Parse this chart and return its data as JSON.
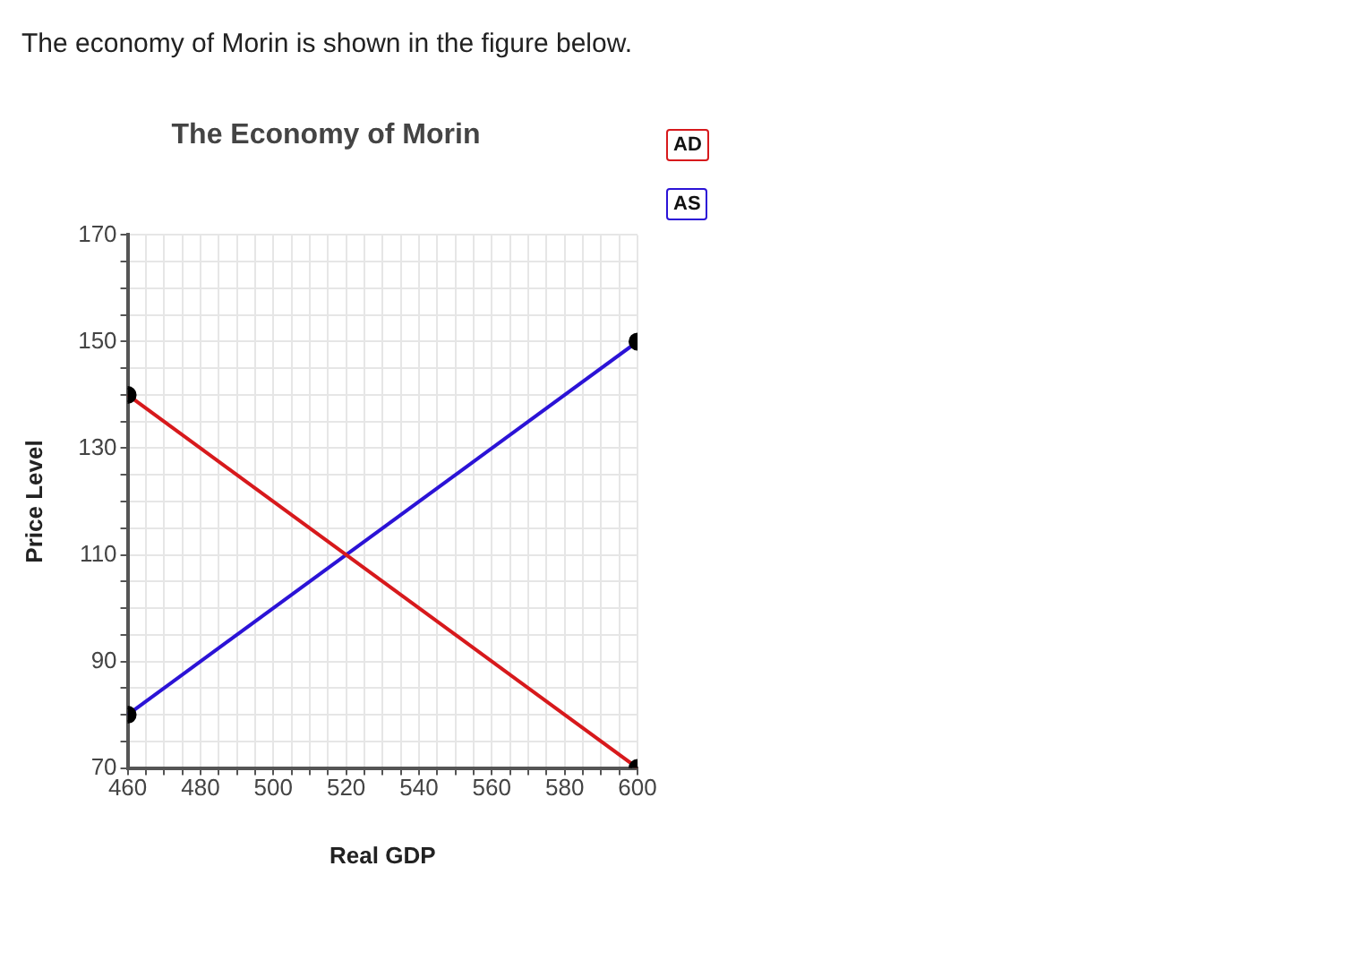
{
  "chart_data": {
    "type": "line",
    "title": "The Economy of Morin",
    "xlabel": "Real GDP",
    "ylabel": "Price Level",
    "annotations": [
      "The economy of Morin is shown in the figure below."
    ],
    "x": [
      460,
      600
    ],
    "series": [
      {
        "name": "AD",
        "color": "#d7191c",
        "values": [
          140,
          70
        ]
      },
      {
        "name": "AS",
        "color": "#2b13d6",
        "values": [
          80,
          150
        ]
      }
    ],
    "xlim": [
      460,
      600
    ],
    "xticks": [
      460,
      {
        "value": 465,
        "label": null
      },
      {
        "value": 470,
        "label": null
      },
      {
        "value": 475,
        "label": null
      },
      480,
      {
        "value": 485,
        "label": null
      },
      {
        "value": 490,
        "label": null
      },
      {
        "value": 495,
        "label": null
      },
      500,
      {
        "value": 505,
        "label": null
      },
      {
        "value": 510,
        "label": null
      },
      {
        "value": 515,
        "label": null
      },
      520,
      {
        "value": 525,
        "label": null
      },
      {
        "value": 530,
        "label": null
      },
      {
        "value": 535,
        "label": null
      },
      540,
      {
        "value": 545,
        "label": null
      },
      {
        "value": 550,
        "label": null
      },
      {
        "value": 555,
        "label": null
      },
      560,
      {
        "value": 565,
        "label": null
      },
      {
        "value": 570,
        "label": null
      },
      {
        "value": 575,
        "label": null
      },
      580,
      {
        "value": 585,
        "label": null
      },
      {
        "value": 590,
        "label": null
      },
      {
        "value": 595,
        "label": null
      },
      600
    ],
    "ylim": [
      70,
      170
    ],
    "yticks": [
      70,
      {
        "value": 75,
        "label": null
      },
      {
        "value": 80,
        "label": null
      },
      {
        "value": 85,
        "label": null
      },
      90,
      {
        "value": 95,
        "label": null
      },
      {
        "value": 100,
        "label": null
      },
      {
        "value": 105,
        "label": null
      },
      110,
      {
        "value": 115,
        "label": null
      },
      {
        "value": 120,
        "label": null
      },
      {
        "value": 125,
        "label": null
      },
      130,
      {
        "value": 135,
        "label": null
      },
      {
        "value": 140,
        "label": null
      },
      {
        "value": 145,
        "label": null
      },
      150,
      {
        "value": 155,
        "label": null
      },
      {
        "value": 160,
        "label": null
      },
      {
        "value": 165,
        "label": null
      },
      170
    ],
    "grid": true,
    "legend": "top right",
    "marker": "circle",
    "line_style": "solid"
  }
}
